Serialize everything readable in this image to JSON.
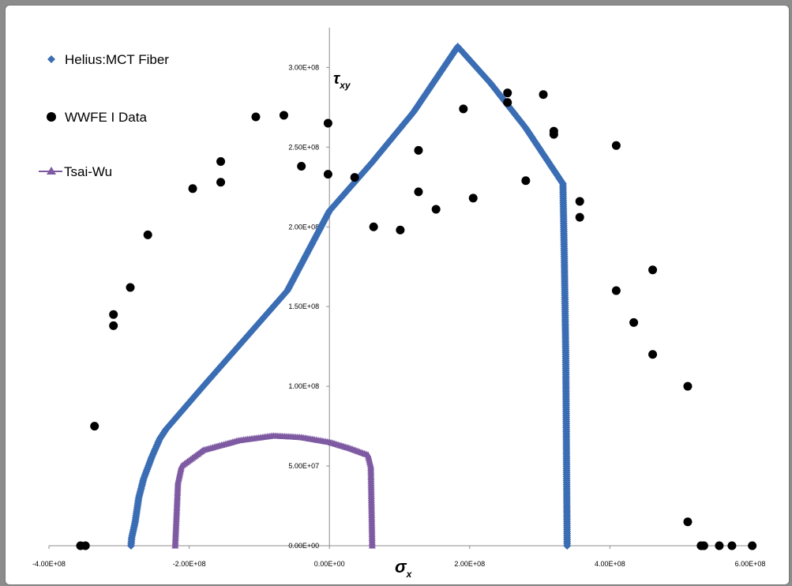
{
  "chart_data": {
    "type": "scatter",
    "xlabel": "σx",
    "ylabel": "τxy",
    "xlim": [
      -400000000,
      600000000
    ],
    "ylim": [
      0,
      320000000
    ],
    "x_ticks": [
      {
        "value": -400000000,
        "label": "-4.00E+08"
      },
      {
        "value": -200000000,
        "label": "-2.00E+08"
      },
      {
        "value": 0,
        "label": "0.00E+00"
      },
      {
        "value": 200000000,
        "label": "2.00E+08"
      },
      {
        "value": 400000000,
        "label": "4.00E+08"
      },
      {
        "value": 600000000,
        "label": "6.00E+08"
      }
    ],
    "y_ticks": [
      {
        "value": 0,
        "label": "0.00E+00"
      },
      {
        "value": 50000000,
        "label": "5.00E+07"
      },
      {
        "value": 100000000,
        "label": "1.00E+08"
      },
      {
        "value": 150000000,
        "label": "1.50E+08"
      },
      {
        "value": 200000000,
        "label": "2.00E+08"
      },
      {
        "value": 250000000,
        "label": "2.50E+08"
      },
      {
        "value": 300000000,
        "label": "3.00E+08"
      }
    ],
    "legend_position": "top-left",
    "series": [
      {
        "name": "Helius:MCT Fiber",
        "marker": "diamond",
        "color": "#3a6db3",
        "points": [
          [
            -283000000,
            0
          ],
          [
            -282000000,
            5000000
          ],
          [
            -277000000,
            15000000
          ],
          [
            -272000000,
            30000000
          ],
          [
            -265000000,
            42000000
          ],
          [
            -253000000,
            56000000
          ],
          [
            -242000000,
            67000000
          ],
          [
            -233000000,
            73000000
          ],
          [
            -180000000,
            100000000
          ],
          [
            -120000000,
            130000000
          ],
          [
            -60000000,
            160000000
          ],
          [
            0,
            210000000
          ],
          [
            60000000,
            240000000
          ],
          [
            120000000,
            272000000
          ],
          [
            183000000,
            313000000
          ],
          [
            230000000,
            290000000
          ],
          [
            280000000,
            262000000
          ],
          [
            333000000,
            227000000
          ],
          [
            335000000,
            180000000
          ],
          [
            337000000,
            120000000
          ],
          [
            338000000,
            60000000
          ],
          [
            339000000,
            0
          ]
        ]
      },
      {
        "name": "WWFE I Data",
        "marker": "circle",
        "color": "#000000",
        "points": [
          [
            -355000000,
            0
          ],
          [
            -348000000,
            0
          ],
          [
            -335000000,
            75000000
          ],
          [
            -308000000,
            138000000
          ],
          [
            -308000000,
            145000000
          ],
          [
            -284000000,
            162000000
          ],
          [
            -259000000,
            195000000
          ],
          [
            -195000000,
            224000000
          ],
          [
            -155000000,
            228000000
          ],
          [
            -155000000,
            241000000
          ],
          [
            -105000000,
            269000000
          ],
          [
            -65000000,
            270000000
          ],
          [
            -40000000,
            238000000
          ],
          [
            -2000000,
            233000000
          ],
          [
            -2000000,
            265000000
          ],
          [
            36000000,
            231000000
          ],
          [
            63000000,
            200000000
          ],
          [
            101000000,
            198000000
          ],
          [
            127000000,
            222000000
          ],
          [
            127000000,
            248000000
          ],
          [
            152000000,
            211000000
          ],
          [
            191000000,
            274000000
          ],
          [
            205000000,
            218000000
          ],
          [
            254000000,
            278000000
          ],
          [
            254000000,
            284000000
          ],
          [
            280000000,
            229000000
          ],
          [
            305000000,
            283000000
          ],
          [
            320000000,
            258000000
          ],
          [
            320000000,
            260000000
          ],
          [
            357000000,
            206000000
          ],
          [
            357000000,
            216000000
          ],
          [
            409000000,
            160000000
          ],
          [
            409000000,
            251000000
          ],
          [
            434000000,
            140000000
          ],
          [
            461000000,
            120000000
          ],
          [
            461000000,
            173000000
          ],
          [
            511000000,
            100000000
          ],
          [
            511000000,
            15000000
          ],
          [
            530000000,
            0
          ],
          [
            534000000,
            0
          ],
          [
            556000000,
            0
          ],
          [
            574000000,
            0
          ],
          [
            603000000,
            0
          ]
        ]
      },
      {
        "name": "Tsai-Wu",
        "marker": "triangle",
        "color": "#7e5aa2",
        "points": [
          [
            -220000000,
            0
          ],
          [
            -216000000,
            40000000
          ],
          [
            -211000000,
            50000000
          ],
          [
            -180000000,
            60000000
          ],
          [
            -130000000,
            66000000
          ],
          [
            -80000000,
            69000000
          ],
          [
            -40000000,
            68000000
          ],
          [
            0,
            65000000
          ],
          [
            30000000,
            61000000
          ],
          [
            55000000,
            57000000
          ],
          [
            59000000,
            50000000
          ],
          [
            60000000,
            25000000
          ],
          [
            61000000,
            0
          ]
        ]
      }
    ]
  }
}
